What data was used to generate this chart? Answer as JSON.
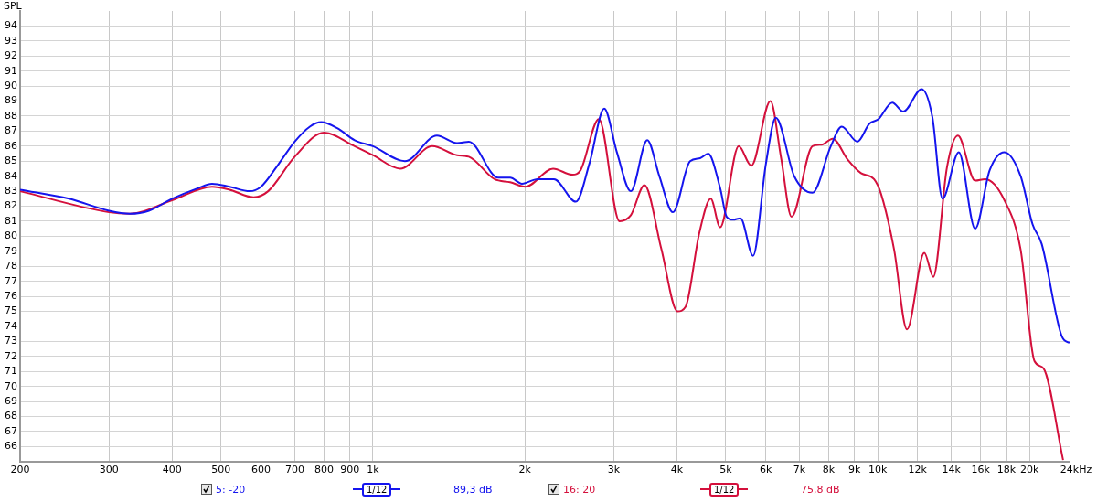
{
  "chart_data": {
    "type": "line",
    "ylabel": "SPL",
    "log": "x",
    "grid": true,
    "legend": "bottom",
    "marker": "none",
    "line_style": "solid",
    "xlim": [
      200,
      24000
    ],
    "ylim": [
      65,
      95
    ],
    "xticks": [
      200,
      300,
      400,
      500,
      600,
      700,
      800,
      900,
      {
        "value": 1000,
        "label": "1k"
      },
      {
        "value": 2000,
        "label": "2k"
      },
      {
        "value": 3000,
        "label": "3k"
      },
      {
        "value": 4000,
        "label": "4k"
      },
      {
        "value": 5000,
        "label": "5k"
      },
      {
        "value": 6000,
        "label": "6k"
      },
      {
        "value": 7000,
        "label": "7k"
      },
      {
        "value": 8000,
        "label": "8k"
      },
      {
        "value": 9000,
        "label": "9k"
      },
      {
        "value": 10000,
        "label": "10k"
      },
      {
        "value": 12000,
        "label": "12k"
      },
      {
        "value": 14000,
        "label": "14k"
      },
      {
        "value": 16000,
        "label": "16k"
      },
      {
        "value": 18000,
        "label": "18k"
      },
      {
        "value": 20000,
        "label": "20k"
      },
      {
        "value": 24000,
        "label": "24k"
      }
    ],
    "xlabel": "Hz",
    "yticks": [
      66,
      67,
      68,
      69,
      70,
      71,
      72,
      73,
      74,
      75,
      76,
      77,
      78,
      79,
      80,
      81,
      82,
      83,
      84,
      85,
      86,
      87,
      88,
      89,
      90,
      91,
      92,
      93,
      94
    ],
    "annotations": [
      "1/12",
      "89,3 dB",
      "1/12",
      "75,8 dB"
    ],
    "series": [
      {
        "name": "5: -20",
        "color": "#1515ee",
        "x": [
          200,
          250,
          300,
          330,
          360,
          400,
          450,
          480,
          520,
          570,
          600,
          650,
          700,
          750,
          790,
          850,
          920,
          1000,
          1157,
          1339,
          1468,
          1549,
          1771,
          1870,
          1974,
          2119,
          2284,
          2524,
          2688,
          2873,
          3043,
          3243,
          3496,
          3694,
          3929,
          4250,
          4449,
          4616,
          4875,
          5021,
          5171,
          5348,
          5665,
          6004,
          6283,
          6835,
          7427,
          8075,
          8489,
          9118,
          9630,
          10040,
          10690,
          11240,
          12220,
          12840,
          13440,
          14480,
          15600,
          16670,
          17830,
          19200,
          20270,
          21130,
          23190,
          24000
        ],
        "values": [
          83.1,
          82.5,
          81.7,
          81.5,
          81.7,
          82.5,
          83.2,
          83.5,
          83.3,
          83.0,
          83.3,
          84.8,
          86.3,
          87.3,
          87.6,
          87.2,
          86.4,
          86.0,
          85.0,
          86.7,
          86.2,
          86.3,
          83.9,
          83.9,
          83.5,
          83.8,
          83.8,
          82.3,
          84.9,
          88.5,
          85.6,
          83.0,
          86.4,
          84.0,
          81.6,
          85.0,
          85.2,
          85.5,
          83.2,
          81.3,
          81.1,
          81.2,
          78.7,
          84.8,
          87.9,
          84.0,
          82.9,
          86.0,
          87.3,
          86.3,
          87.5,
          87.8,
          88.9,
          88.3,
          89.8,
          87.9,
          82.5,
          85.6,
          80.5,
          84.4,
          85.6,
          84.0,
          80.8,
          79.5,
          73.3,
          72.9
        ]
      },
      {
        "name": "16: 20",
        "color": "#d4103c",
        "x": [
          200,
          300,
          330,
          400,
          480,
          520,
          580,
          620,
          700,
          800,
          920,
          1000,
          1133,
          1311,
          1468,
          1549,
          1742,
          1870,
          2006,
          2275,
          2483,
          2579,
          2803,
          3081,
          3243,
          3452,
          3725,
          4012,
          4163,
          4431,
          4670,
          4875,
          5304,
          5618,
          6130,
          6438,
          6750,
          7427,
          7742,
          8144,
          8723,
          9270,
          9835,
          10160,
          10780,
          11430,
          12370,
          12890,
          13720,
          14420,
          15600,
          16330,
          17830,
          19200,
          20440,
          21310,
          23300
        ],
        "values": [
          83.0,
          81.6,
          81.5,
          82.4,
          83.3,
          83.1,
          82.6,
          83.0,
          85.3,
          86.9,
          86.0,
          85.4,
          84.5,
          86.0,
          85.4,
          85.3,
          83.8,
          83.6,
          83.3,
          84.5,
          84.1,
          84.4,
          87.8,
          81.0,
          81.4,
          83.4,
          79.2,
          75.0,
          75.3,
          80.2,
          82.5,
          80.6,
          86.0,
          84.7,
          89.0,
          85.2,
          81.3,
          86.0,
          86.1,
          86.5,
          85.1,
          84.2,
          83.8,
          82.8,
          79.1,
          73.8,
          78.9,
          77.3,
          84.6,
          86.7,
          83.7,
          83.8,
          82.4,
          79.1,
          71.7,
          71.2,
          65.1
        ]
      }
    ]
  }
}
